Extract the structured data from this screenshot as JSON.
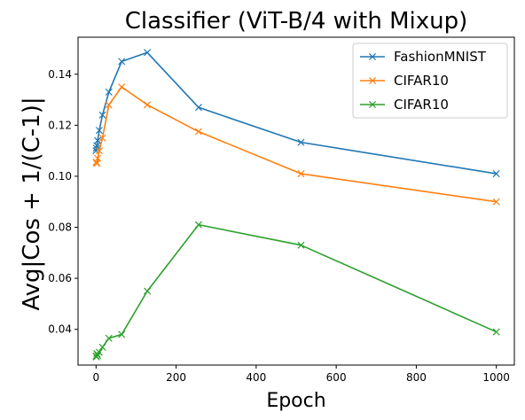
{
  "chart_data": {
    "type": "line",
    "title": "Classifier (ViT-B/4 with Mixup)",
    "xlabel": "Epoch",
    "ylabel": "Avg|Cos + 1/(C-1)|",
    "xlim": [
      -45,
      1045
    ],
    "ylim": [
      0.026,
      0.1545
    ],
    "xticks": [
      0,
      200,
      400,
      600,
      800,
      1000
    ],
    "yticks": [
      0.04,
      0.06,
      0.08,
      0.1,
      0.12,
      0.14
    ],
    "ytick_labels": [
      "0.04",
      "0.06",
      "0.08",
      "0.10",
      "0.12",
      "0.14"
    ],
    "xtick_labels": [
      "0",
      "200",
      "400",
      "600",
      "800",
      "1000"
    ],
    "grid": false,
    "legend_position": "top-right",
    "marker": "x",
    "x": [
      0,
      1,
      2,
      4,
      8,
      16,
      32,
      64,
      128,
      256,
      512,
      1000
    ],
    "series": [
      {
        "name": "FashionMNIST",
        "color": "#1f77b4",
        "values": [
          0.11,
          0.111,
          0.112,
          0.114,
          0.118,
          0.124,
          0.133,
          0.145,
          0.1485,
          0.127,
          0.1133,
          0.101
        ]
      },
      {
        "name": "CIFAR10",
        "color": "#ff7f0e",
        "values": [
          0.1055,
          0.1055,
          0.105,
          0.107,
          0.11,
          0.115,
          0.128,
          0.135,
          0.128,
          0.1175,
          0.101,
          0.09
        ]
      },
      {
        "name": "CIFAR10",
        "color": "#2ca02c",
        "values": [
          0.0295,
          0.0292,
          0.0305,
          0.0298,
          0.031,
          0.033,
          0.0365,
          0.038,
          0.055,
          0.081,
          0.073,
          0.039
        ]
      }
    ]
  }
}
